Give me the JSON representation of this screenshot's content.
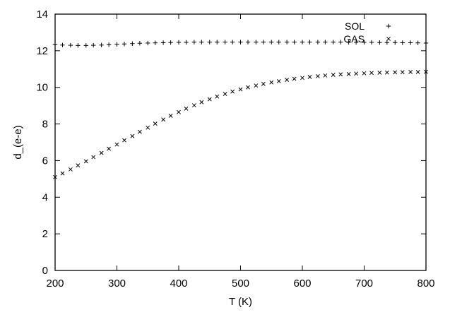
{
  "chart_data": {
    "type": "scatter",
    "xlabel": "T (K)",
    "ylabel": "d_(e-e)",
    "xlim": [
      200,
      800
    ],
    "ylim": [
      0,
      14
    ],
    "xticks": [
      200,
      300,
      400,
      500,
      600,
      700,
      800
    ],
    "yticks": [
      0,
      2,
      4,
      6,
      8,
      10,
      12,
      14
    ],
    "grid": false,
    "legend": "top-right",
    "series": [
      {
        "name": "SOL",
        "marker": "+",
        "x": [
          200,
          212,
          225,
          237,
          250,
          262,
          275,
          287,
          300,
          312,
          325,
          337,
          350,
          362,
          375,
          387,
          400,
          412,
          425,
          437,
          450,
          462,
          475,
          487,
          500,
          512,
          525,
          537,
          550,
          562,
          575,
          587,
          600,
          612,
          625,
          637,
          650,
          662,
          675,
          687,
          700,
          712,
          725,
          737,
          750,
          762,
          775,
          787,
          800
        ],
        "y": [
          12.34,
          12.31,
          12.3,
          12.29,
          12.29,
          12.3,
          12.31,
          12.33,
          12.35,
          12.37,
          12.39,
          12.41,
          12.42,
          12.43,
          12.44,
          12.45,
          12.46,
          12.46,
          12.47,
          12.47,
          12.47,
          12.47,
          12.47,
          12.47,
          12.47,
          12.47,
          12.47,
          12.47,
          12.47,
          12.47,
          12.47,
          12.47,
          12.47,
          12.47,
          12.47,
          12.47,
          12.47,
          12.47,
          12.46,
          12.46,
          12.46,
          12.46,
          12.45,
          12.45,
          12.45,
          12.44,
          12.44,
          12.43,
          12.42
        ]
      },
      {
        "name": "GAS",
        "marker": "x",
        "x": [
          200,
          212,
          225,
          237,
          250,
          262,
          275,
          287,
          300,
          312,
          325,
          337,
          350,
          362,
          375,
          387,
          400,
          412,
          425,
          437,
          450,
          462,
          475,
          487,
          500,
          512,
          525,
          537,
          550,
          562,
          575,
          587,
          600,
          612,
          625,
          637,
          650,
          662,
          675,
          687,
          700,
          712,
          725,
          737,
          750,
          762,
          775,
          787,
          800
        ],
        "y": [
          5.1,
          5.3,
          5.52,
          5.74,
          5.96,
          6.19,
          6.42,
          6.65,
          6.88,
          7.11,
          7.34,
          7.57,
          7.8,
          8.02,
          8.24,
          8.45,
          8.65,
          8.84,
          9.02,
          9.19,
          9.35,
          9.5,
          9.64,
          9.77,
          9.89,
          10.0,
          10.1,
          10.19,
          10.27,
          10.34,
          10.41,
          10.47,
          10.52,
          10.57,
          10.61,
          10.65,
          10.68,
          10.71,
          10.73,
          10.75,
          10.77,
          10.79,
          10.8,
          10.81,
          10.82,
          10.83,
          10.84,
          10.84,
          10.85
        ]
      }
    ]
  }
}
